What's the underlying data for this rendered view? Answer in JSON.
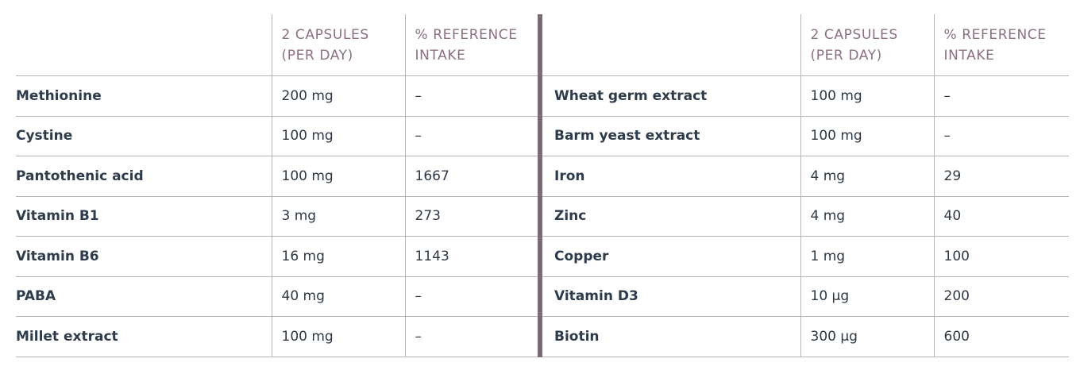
{
  "headers": {
    "capsules": "2 CAPSULES\n(PER DAY)",
    "capsules_line1": "2 CAPSULES",
    "capsules_line2": "(PER DAY)",
    "reference_line1": "% REFERENCE",
    "reference_line2": "INTAKE"
  },
  "left_rows": [
    {
      "name": "Methionine",
      "amount": "200 mg",
      "ri": "–"
    },
    {
      "name": "Cystine",
      "amount": "100 mg",
      "ri": "–"
    },
    {
      "name": "Pantothenic acid",
      "amount": "100 mg",
      "ri": "1667"
    },
    {
      "name": "Vitamin B1",
      "amount": "3 mg",
      "ri": "273"
    },
    {
      "name": "Vitamin B6",
      "amount": "16 mg",
      "ri": "1143"
    },
    {
      "name": "PABA",
      "amount": "40 mg",
      "ri": "–"
    },
    {
      "name": "Millet extract",
      "amount": "100 mg",
      "ri": "–"
    }
  ],
  "right_rows": [
    {
      "name": "Wheat germ extract",
      "amount": "100 mg",
      "ri": "–"
    },
    {
      "name": "Barm yeast extract",
      "amount": "100 mg",
      "ri": "–"
    },
    {
      "name": "Iron",
      "amount": "4 mg",
      "ri": "29"
    },
    {
      "name": "Zinc",
      "amount": "4 mg",
      "ri": "40"
    },
    {
      "name": "Copper",
      "amount": "1 mg",
      "ri": "100"
    },
    {
      "name": "Vitamin D3",
      "amount": "10 µg",
      "ri": "200"
    },
    {
      "name": "Biotin",
      "amount": "300 µg",
      "ri": "600"
    }
  ],
  "colors": {
    "header_text": "#8c6f83",
    "divider": "#7d6a77",
    "row_text": "#2d3b4a",
    "rule": "#b9b3b7"
  }
}
